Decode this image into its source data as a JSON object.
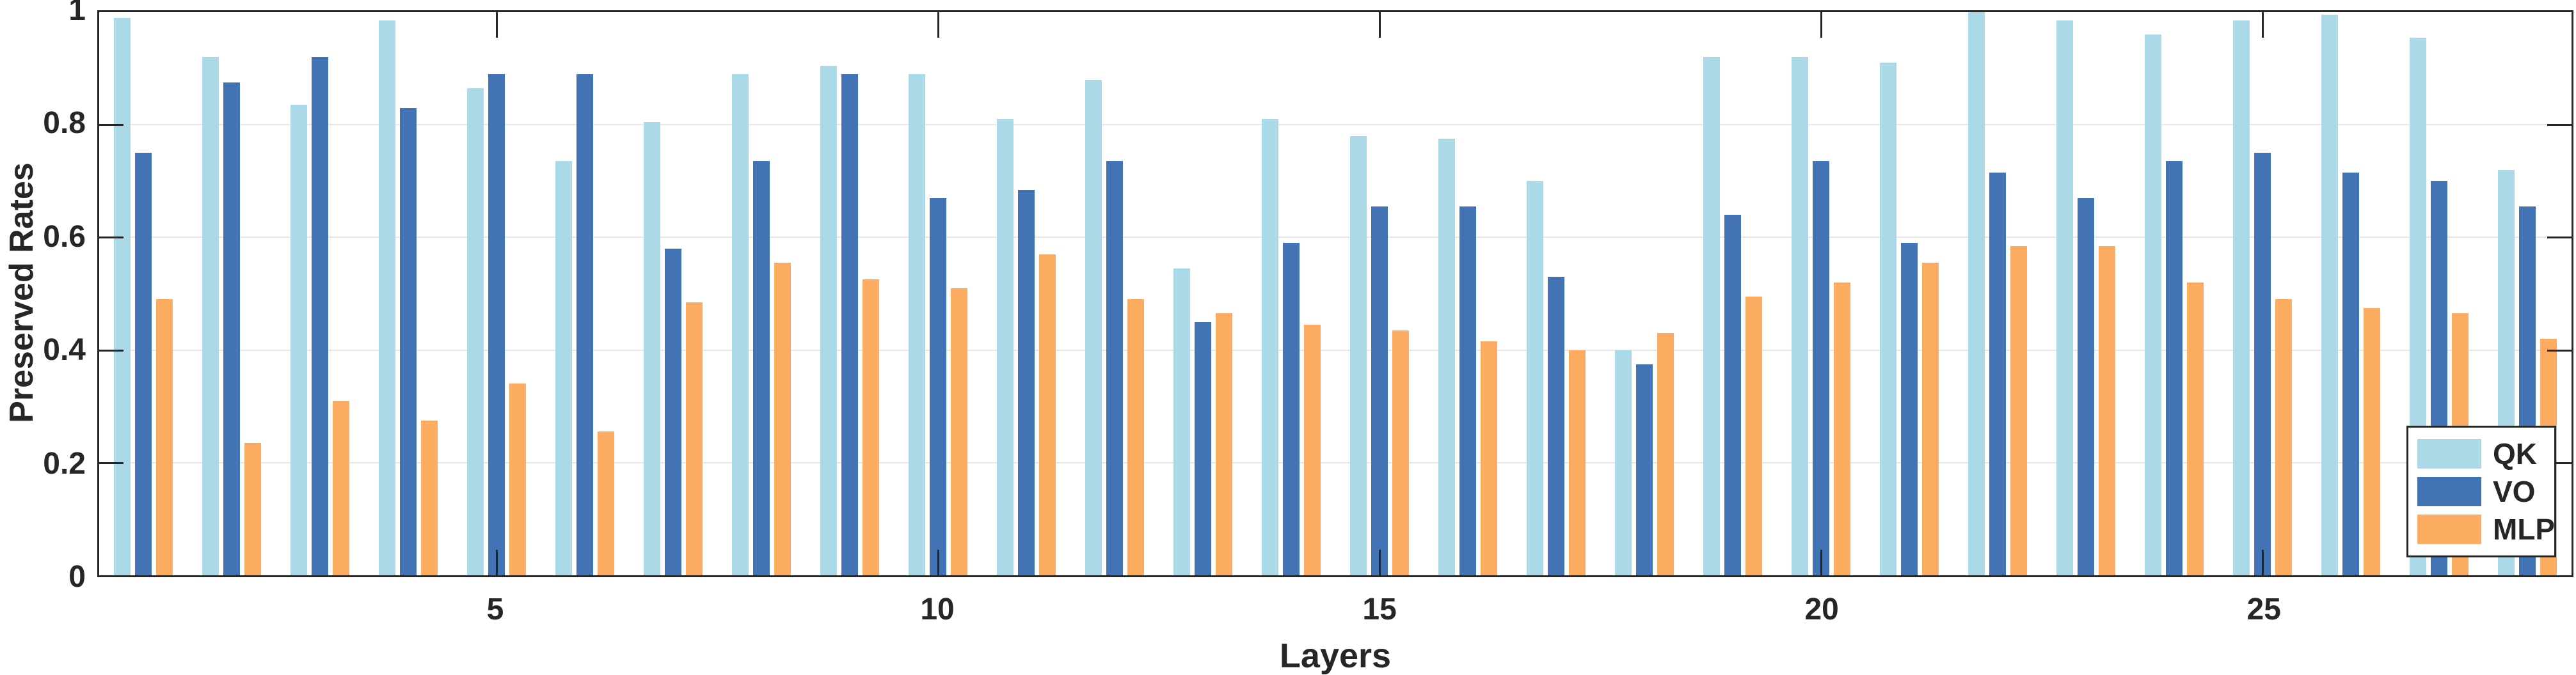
{
  "figure": {
    "ylabel": "Preserved Rates",
    "xlabel": "Layers"
  },
  "colors": {
    "qk": "#ABD9E8",
    "vo": "#4273B4",
    "mlp": "#FBAC60",
    "axis": "#262626",
    "grid": "#E7E7E7",
    "background": "#FFFFFF"
  },
  "chart_data": {
    "type": "bar",
    "title": "",
    "xlabel": "Layers",
    "ylabel": "Preserved Rates",
    "categories": [
      1,
      2,
      3,
      4,
      5,
      6,
      7,
      8,
      9,
      10,
      11,
      12,
      13,
      14,
      15,
      16,
      17,
      18,
      19,
      20,
      21,
      22,
      23,
      24,
      25,
      26,
      27,
      28
    ],
    "x_tick_positions": [
      5,
      10,
      15,
      20,
      25
    ],
    "x_tick_labels": [
      "5",
      "10",
      "15",
      "20",
      "25"
    ],
    "y_tick_values": [
      0,
      0.2,
      0.4,
      0.6,
      0.8,
      1
    ],
    "y_tick_labels": [
      "0",
      "0.2",
      "0.4",
      "0.6",
      "0.8",
      "1"
    ],
    "ylim": [
      0,
      1
    ],
    "grid": "horizontal-only",
    "legend_position": "bottom-right",
    "series": [
      {
        "name": "QK",
        "color": "#ABD9E8",
        "values": [
          0.99,
          0.92,
          0.835,
          0.985,
          0.865,
          0.735,
          0.805,
          0.89,
          0.905,
          0.89,
          0.81,
          0.88,
          0.545,
          0.81,
          0.78,
          0.775,
          0.7,
          0.4,
          0.92,
          0.92,
          0.91,
          1.0,
          0.985,
          0.96,
          0.985,
          0.995,
          0.955,
          0.72
        ]
      },
      {
        "name": "VO",
        "color": "#4273B4",
        "values": [
          0.75,
          0.875,
          0.92,
          0.83,
          0.89,
          0.89,
          0.58,
          0.735,
          0.89,
          0.67,
          0.685,
          0.735,
          0.45,
          0.59,
          0.655,
          0.655,
          0.53,
          0.375,
          0.64,
          0.735,
          0.59,
          0.715,
          0.67,
          0.735,
          0.75,
          0.715,
          0.7,
          0.655
        ]
      },
      {
        "name": "MLP",
        "color": "#FBAC60",
        "values": [
          0.49,
          0.235,
          0.31,
          0.275,
          0.34,
          0.255,
          0.485,
          0.555,
          0.525,
          0.51,
          0.57,
          0.49,
          0.465,
          0.445,
          0.435,
          0.415,
          0.4,
          0.43,
          0.495,
          0.52,
          0.555,
          0.585,
          0.585,
          0.52,
          0.49,
          0.475,
          0.465,
          0.42
        ]
      }
    ]
  }
}
